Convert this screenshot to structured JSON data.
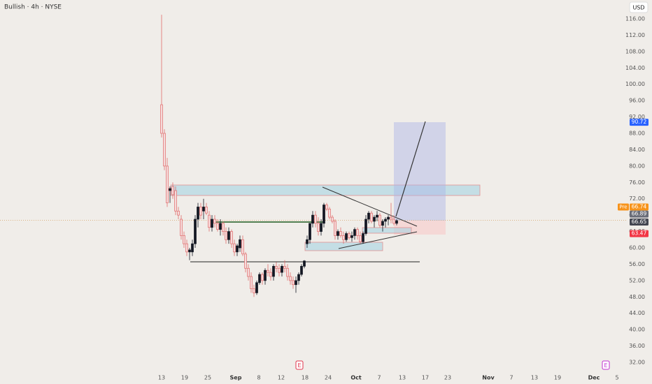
{
  "header": {
    "title": "Bullish · 4h · NYSE",
    "currency": "USD"
  },
  "chart_data": {
    "type": "candlestick",
    "x": [
      46.2,
      47,
      47.8,
      48.6,
      49.4,
      50.2,
      51,
      51.8,
      52.6,
      53.4,
      54.2,
      55,
      55.8,
      56.6,
      57.4,
      58.2,
      59,
      59.8,
      60.6,
      61.4,
      62.2,
      63,
      63.8,
      64.6,
      65.4,
      66.2,
      67,
      67.8,
      68.6,
      69.4,
      70.2,
      71,
      71.8,
      72.6,
      73.4,
      74.2,
      75,
      75.8,
      76.6,
      77.4,
      78.2,
      79,
      79.8,
      80.6,
      81.4,
      82.2,
      83,
      83.8,
      84.6,
      85.4,
      86.2,
      87,
      87.8,
      88.6,
      89.4,
      90.2,
      91,
      91.8,
      92.6,
      93.4,
      94.2,
      95,
      95.8,
      96.6,
      97.4,
      98.2,
      99,
      99.8,
      100.6,
      101.4,
      102.2,
      103,
      103.8,
      104.6,
      105.4,
      106.2,
      107,
      107.8,
      108.6,
      109.4,
      110.2,
      111,
      111.8,
      112.6,
      113.4
    ],
    "open": [
      95,
      88,
      80,
      74,
      75,
      74,
      69,
      67,
      63,
      61,
      59,
      59,
      61,
      67,
      70,
      69,
      70,
      68,
      65,
      67,
      66,
      64.5,
      66,
      64,
      62,
      64,
      61,
      59,
      60,
      62,
      58.5,
      55,
      53,
      50,
      49,
      51.5,
      53.5,
      52,
      54.5,
      54,
      53,
      55.5,
      55,
      54,
      55.5,
      55,
      53,
      52,
      51,
      52,
      53.5,
      55.5,
      61,
      62,
      66,
      68,
      66,
      64,
      66,
      70.5,
      69.5,
      67.5,
      66.5,
      63,
      64,
      63,
      62,
      63.5,
      62.5,
      63,
      64.5,
      63,
      61.5,
      63.5,
      67,
      68.5,
      66.5,
      67.5,
      68,
      65.5,
      66.5,
      67,
      67.5,
      67,
      66
    ],
    "high": [
      117,
      89,
      82,
      75,
      76,
      75,
      70,
      68,
      64,
      62,
      60,
      62,
      68,
      71,
      71,
      72,
      71,
      69,
      68,
      68,
      67,
      67,
      66.5,
      65,
      65,
      64.5,
      62,
      61,
      63,
      63,
      59,
      56,
      54,
      51,
      52,
      54,
      54,
      55,
      56,
      55,
      56,
      56.5,
      56,
      56,
      57,
      56,
      54,
      53,
      53,
      54,
      56,
      57,
      63,
      66,
      69,
      69,
      67.5,
      67,
      71,
      71,
      70,
      68,
      67,
      64.5,
      65,
      64,
      64,
      64,
      64,
      65,
      65,
      64,
      64,
      68,
      69,
      69,
      68,
      69,
      68.5,
      67,
      67.5,
      68,
      71,
      68,
      67
    ],
    "low": [
      87,
      79,
      70,
      71,
      72,
      68,
      67,
      62,
      60,
      58,
      57,
      58,
      60,
      65,
      67,
      67,
      68,
      64,
      64,
      65,
      64,
      63,
      63,
      61,
      61,
      60,
      58,
      58,
      59,
      58,
      54,
      52,
      49,
      48,
      48.5,
      51,
      51,
      51,
      53,
      52,
      52,
      54,
      53,
      53,
      54,
      52,
      51,
      50,
      49,
      51,
      53,
      55,
      60,
      61,
      65,
      65,
      63,
      63,
      65,
      69,
      67,
      66,
      62,
      62,
      62.5,
      61,
      61.5,
      62,
      61.5,
      62,
      62,
      61,
      61,
      63,
      66,
      66,
      65,
      66.5,
      65,
      64,
      65,
      65.5,
      66,
      65.5,
      65.5
    ],
    "close": [
      88,
      80,
      71,
      74.5,
      73,
      69,
      68,
      63,
      61,
      59,
      59.5,
      61,
      67,
      70,
      68,
      70,
      68.5,
      65,
      67,
      66,
      64.5,
      66,
      64,
      62,
      64,
      61,
      59,
      60.5,
      62,
      58.5,
      55,
      53,
      50,
      49,
      51.5,
      53.5,
      52,
      54.5,
      54,
      53,
      55.5,
      55,
      54,
      55.5,
      55,
      53,
      52,
      51,
      52,
      53.5,
      55.5,
      56.8,
      62,
      66,
      68,
      66,
      64,
      66,
      70.5,
      69.5,
      67.5,
      66.5,
      63,
      64,
      63,
      62,
      63.5,
      62.5,
      63,
      64.5,
      63,
      61.5,
      63.5,
      67,
      68.5,
      66.5,
      67.5,
      68,
      65.5,
      66.5,
      67,
      67.5,
      67,
      66,
      66.65
    ],
    "up_color": "#131722",
    "down_color": "#e06b6b",
    "xlim": [
      0,
      186.4
    ],
    "xticks": [
      {
        "value": 46.2,
        "label": "13"
      },
      {
        "value": 52.8,
        "label": "19"
      },
      {
        "value": 59.4,
        "label": "25"
      },
      {
        "value": 67.4,
        "label": "Sep"
      },
      {
        "value": 74,
        "label": "8"
      },
      {
        "value": 80.4,
        "label": "12"
      },
      {
        "value": 87.2,
        "label": "18"
      },
      {
        "value": 93.8,
        "label": "24"
      },
      {
        "value": 101.8,
        "label": "Oct"
      },
      {
        "value": 108.4,
        "label": "7"
      },
      {
        "value": 115,
        "label": "13"
      },
      {
        "value": 121.6,
        "label": "17"
      },
      {
        "value": 128,
        "label": "23"
      },
      {
        "value": 139.6,
        "label": "Nov"
      },
      {
        "value": 146.2,
        "label": "7"
      },
      {
        "value": 152.8,
        "label": "13"
      },
      {
        "value": 159.4,
        "label": "19"
      },
      {
        "value": 169.8,
        "label": "Dec"
      },
      {
        "value": 176.4,
        "label": "5"
      }
    ],
    "ylim": [
      32,
      116
    ],
    "yticks": [
      {
        "value": 32,
        "label": "32.00"
      },
      {
        "value": 36,
        "label": "36.00"
      },
      {
        "value": 40,
        "label": "40.00"
      },
      {
        "value": 44,
        "label": "44.00"
      },
      {
        "value": 48,
        "label": "48.00"
      },
      {
        "value": 52,
        "label": "52.00"
      },
      {
        "value": 56,
        "label": "56.00"
      },
      {
        "value": 60,
        "label": "60.00"
      },
      {
        "value": 64,
        "label": "64.00"
      },
      {
        "value": 68,
        "label": "68.00"
      },
      {
        "value": 72,
        "label": "72.00"
      },
      {
        "value": 76,
        "label": "76.00"
      },
      {
        "value": 80,
        "label": "80.00"
      },
      {
        "value": 84,
        "label": "84.00"
      },
      {
        "value": 88,
        "label": "88.00"
      },
      {
        "value": 92,
        "label": "92.00"
      },
      {
        "value": 96,
        "label": "96.00"
      },
      {
        "value": 100,
        "label": "100.00"
      },
      {
        "value": 104,
        "label": "104.00"
      },
      {
        "value": 108,
        "label": "108.00"
      },
      {
        "value": 112,
        "label": "112.00"
      },
      {
        "value": 116,
        "label": "116.00"
      }
    ],
    "price_labels": [
      {
        "value": 90.72,
        "label": "90.72",
        "color": "#2962ff"
      },
      {
        "value": 66.74,
        "label": "66.74",
        "color": "#f7931a",
        "tag": "Pre"
      },
      {
        "value": 66.89,
        "label": "66.89",
        "color": "#6a6d78"
      },
      {
        "value": 66.65,
        "label": "66.65",
        "color": "#434651"
      },
      {
        "value": 63.47,
        "label": "63.47",
        "color": "#f23645"
      }
    ],
    "events": [
      {
        "x": 85.6,
        "label": "E",
        "color": "#e0334a"
      },
      {
        "x": 173.2,
        "label": "E",
        "color": "#c030d0"
      }
    ]
  }
}
